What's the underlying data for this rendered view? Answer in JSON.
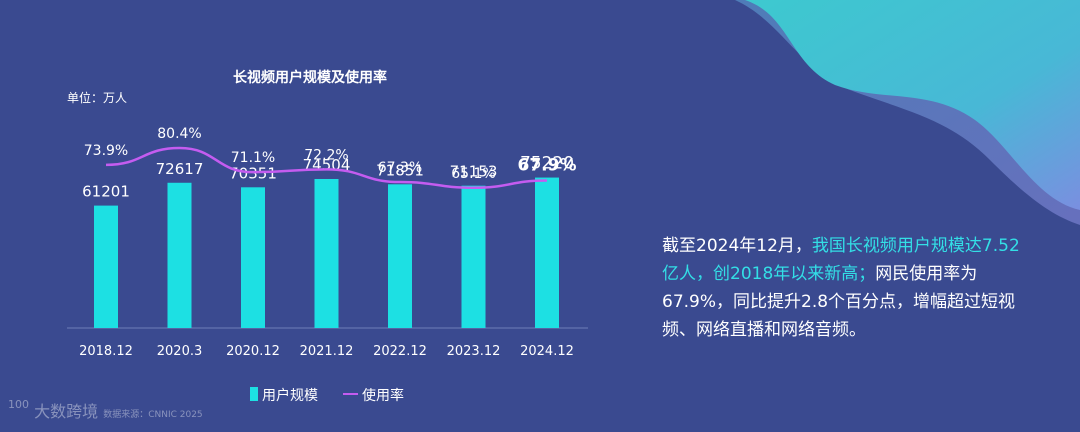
{
  "chart_data": {
    "type": "bar",
    "title": "长视频用户规模及使用率",
    "unit": "单位：万人",
    "categories": [
      "2018.12",
      "2020.3",
      "2020.12",
      "2021.12",
      "2022.12",
      "2023.12",
      "2024.12"
    ],
    "series": [
      {
        "name": "用户规模",
        "type": "bar",
        "values": [
          61201,
          72617,
          70351,
          74504,
          71851,
          71153,
          75220
        ]
      },
      {
        "name": "使用率",
        "type": "line",
        "values": [
          73.9,
          80.4,
          71.1,
          72.2,
          67.3,
          65.1,
          67.9
        ]
      }
    ],
    "rate_labels": [
      "73.9%",
      "80.4%",
      "71.1%",
      "72.2%",
      "67.3%",
      "65.1%",
      "67.9%"
    ],
    "legend": [
      "用户规模",
      "使用率"
    ],
    "legend_position": "bottom",
    "grid": false,
    "ylim": [
      0,
      260000
    ]
  },
  "summary": {
    "p1": "截至2024年12月，",
    "p2": "我国长视频用户规模达7.52亿人，创2018年以来新高；",
    "p3": "网民使用率为67.9%，同比提升2.8个百分点，增幅超过短视频、网络直播和网络音频。"
  },
  "watermark": {
    "logo": "100",
    "text": "大数跨境",
    "source": "数据来源：CNNIC 2025"
  },
  "colors": {
    "background": "#3a4a90",
    "bar": "#1de0e3",
    "line": "#c45cf0",
    "highlight": "#33dfe6",
    "text": "#ffffff"
  }
}
